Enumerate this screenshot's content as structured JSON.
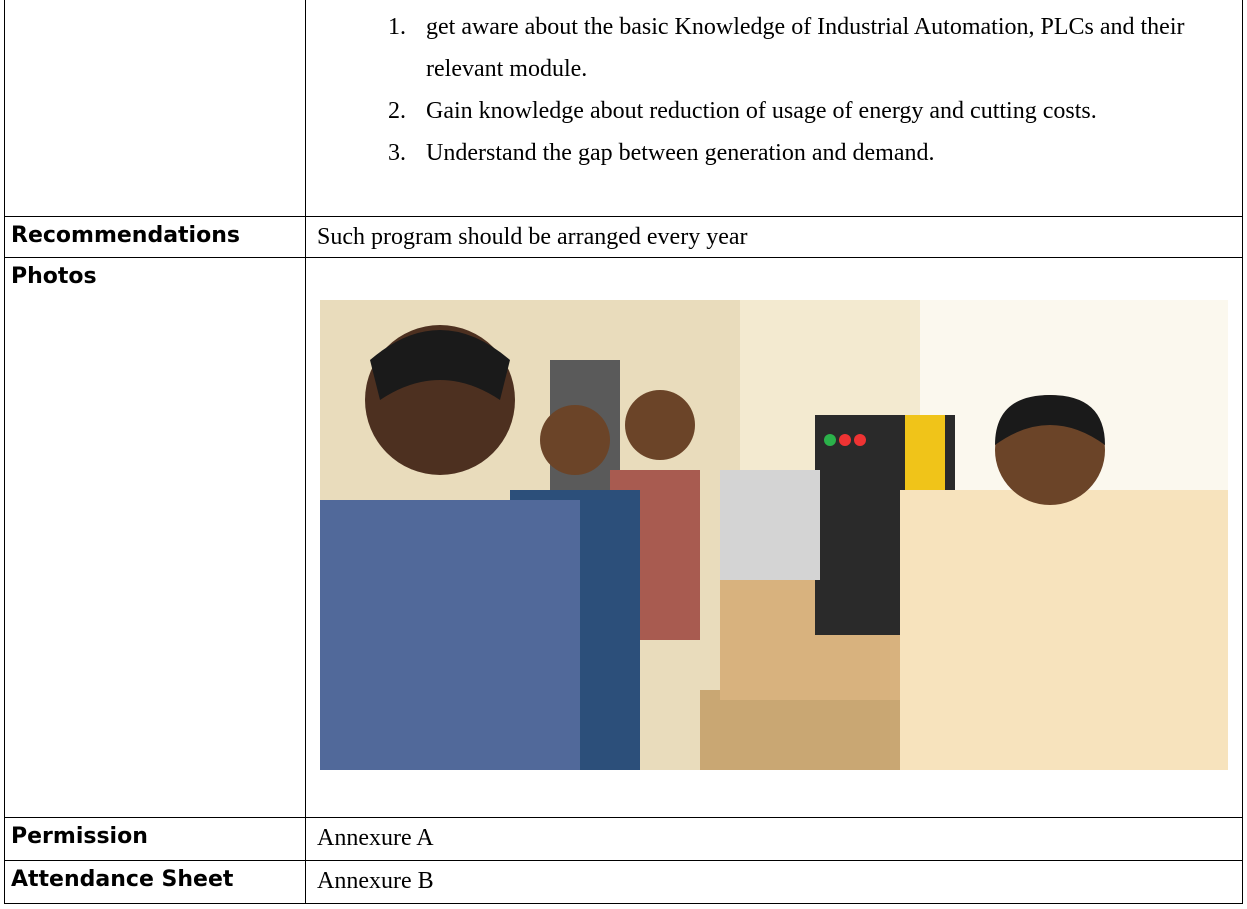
{
  "outcomes": [
    "get aware about the basic Knowledge of Industrial Automation, PLCs and their relevant module.",
    "Gain knowledge about reduction of usage of energy and cutting costs.",
    "Understand the gap between generation and demand."
  ],
  "table": {
    "rows": [
      {
        "label": "Recommendations",
        "content": "Such program should be arranged every year"
      },
      {
        "label": "Photos"
      },
      {
        "label": "Permission",
        "content": "Annexure A"
      },
      {
        "label": "Attendance Sheet",
        "content": "Annexure B"
      }
    ]
  }
}
